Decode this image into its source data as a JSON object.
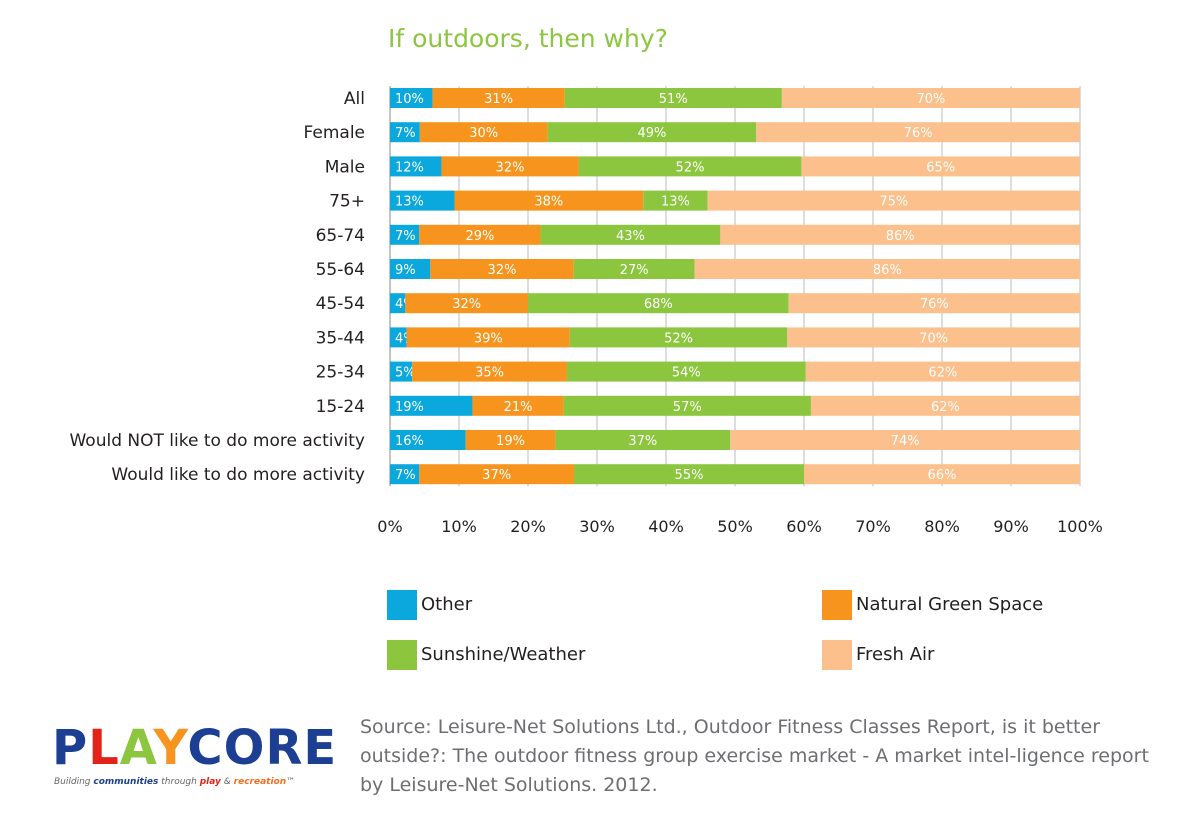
{
  "chart_data": {
    "type": "bar",
    "orientation": "horizontal",
    "stacked": "percent",
    "title": "If outdoors, then why?",
    "categories": [
      "All",
      "Female",
      "Male",
      "75+",
      "65-74",
      "55-64",
      "45-54",
      "35-44",
      "25-34",
      "15-24",
      "Would NOT like to do more activity",
      "Would like to do more activity"
    ],
    "series": [
      {
        "name": "Other",
        "color": "#0ba8dd",
        "values": [
          10,
          7,
          12,
          13,
          7,
          9,
          4,
          4,
          5,
          19,
          16,
          7
        ]
      },
      {
        "name": "Natural Green Space",
        "color": "#f7941d",
        "values": [
          31,
          30,
          32,
          38,
          29,
          32,
          32,
          39,
          35,
          21,
          19,
          37
        ]
      },
      {
        "name": "Sunshine/Weather",
        "color": "#8cc63f",
        "values": [
          51,
          49,
          52,
          13,
          43,
          27,
          68,
          52,
          54,
          57,
          37,
          55
        ]
      },
      {
        "name": "Fresh Air",
        "color": "#fbc08b",
        "values": [
          70,
          76,
          65,
          75,
          86,
          86,
          76,
          70,
          62,
          62,
          74,
          66
        ]
      }
    ],
    "xticks": [
      "0%",
      "10%",
      "20%",
      "30%",
      "40%",
      "50%",
      "60%",
      "70%",
      "80%",
      "90%",
      "100%"
    ],
    "xlim": [
      0,
      100
    ],
    "grid": "vertical",
    "legend": "bottom"
  },
  "source_text": "Source: Leisure-Net Solutions Ltd., Outdoor Fitness Classes Report, is it better outside?: The outdoor fitness group exercise market - A market intel-ligence report by Leisure-Net Solutions. 2012.",
  "logo": {
    "word": "PLAYCORE",
    "tagline_parts": [
      "Building ",
      "communities",
      " through ",
      "play",
      " & ",
      "recreation",
      "™"
    ]
  }
}
